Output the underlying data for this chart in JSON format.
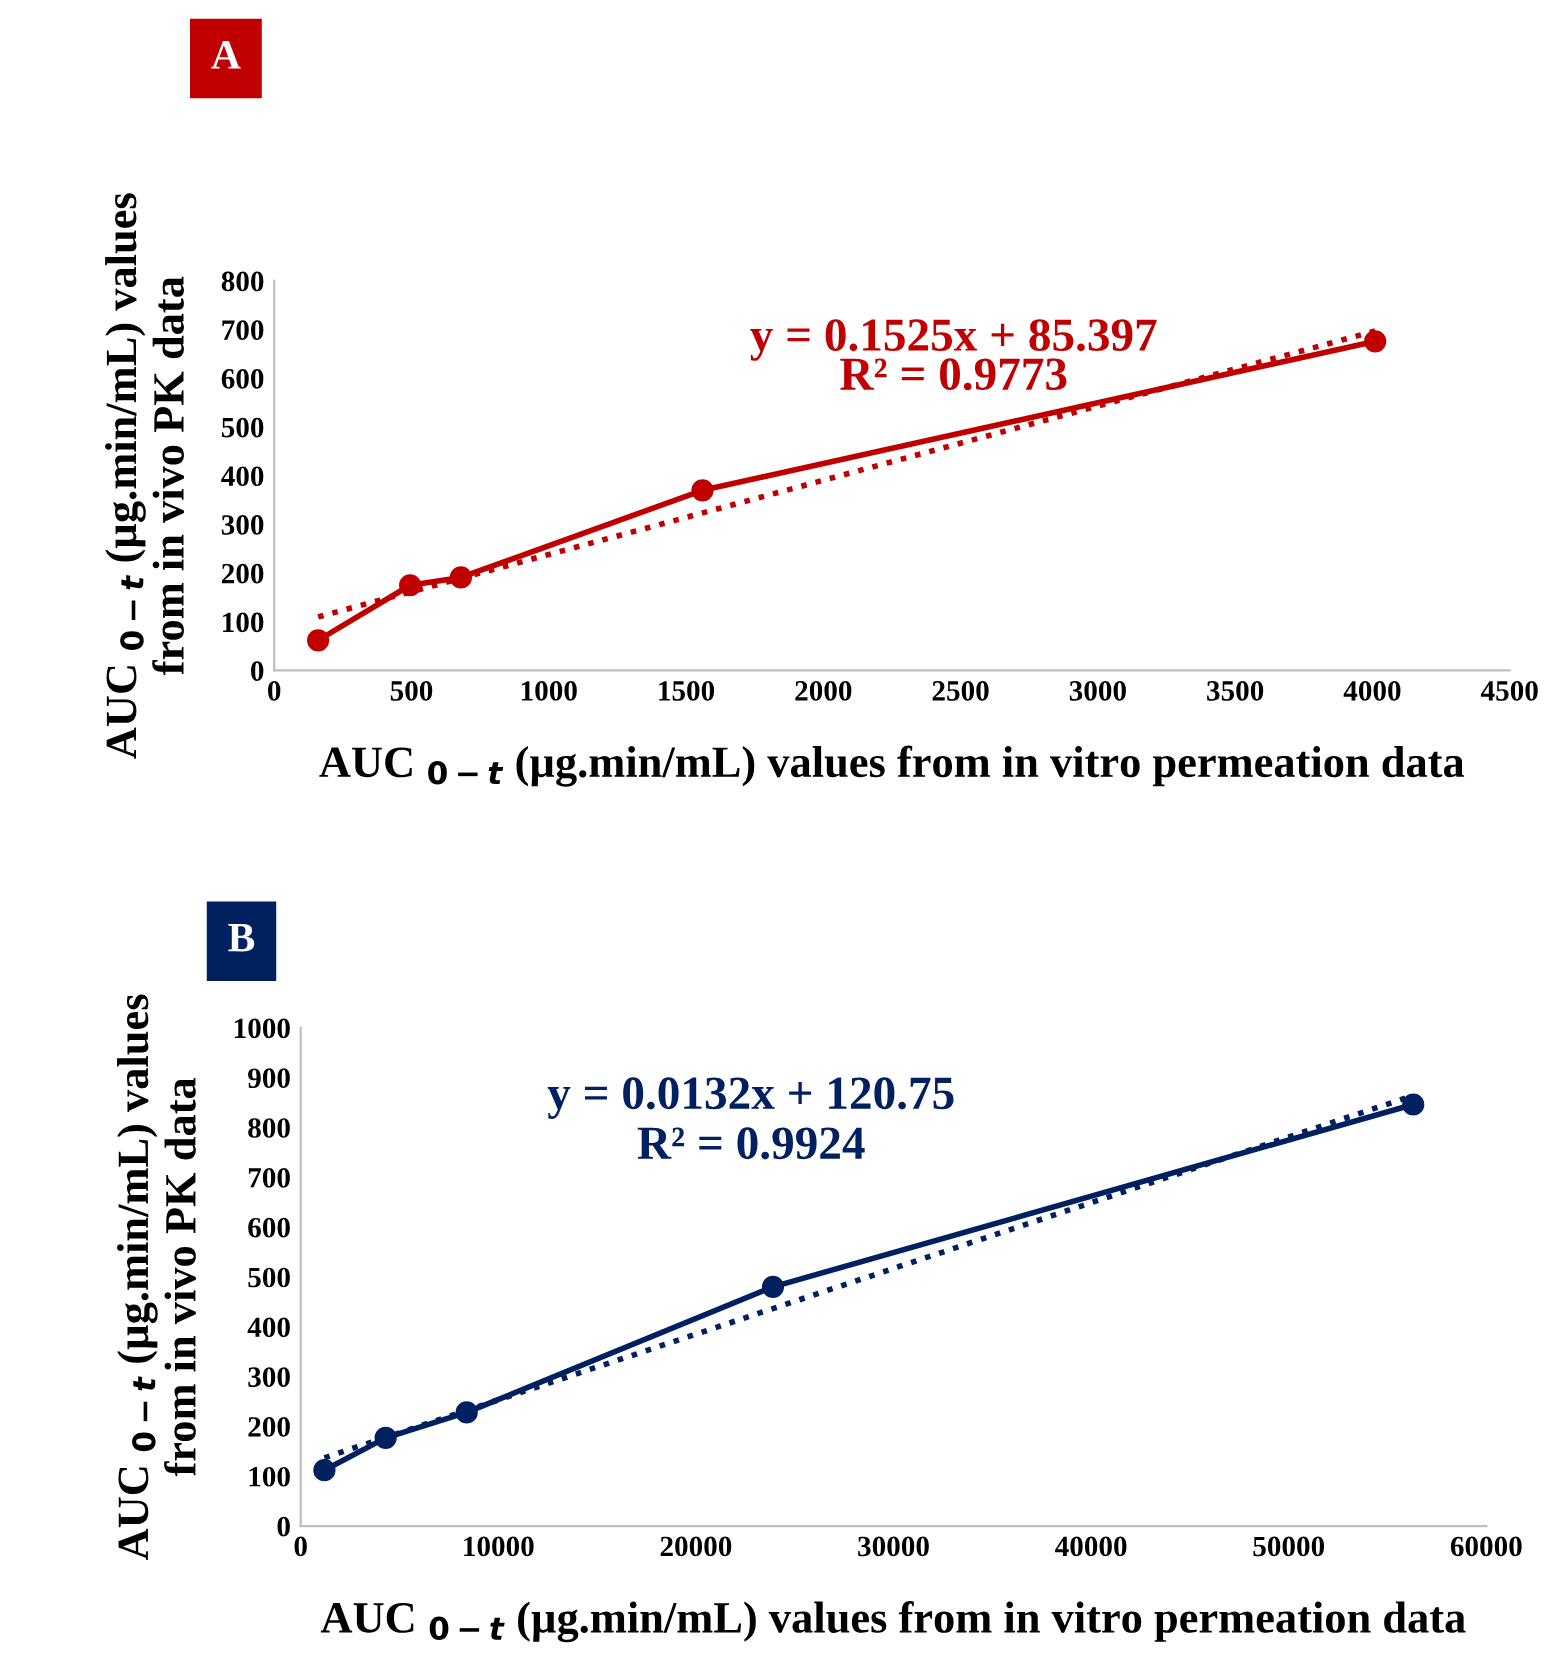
{
  "chart_data": [
    {
      "type": "line",
      "title": "A",
      "xlabel": "AUC $_{0−t}$ (µg.min/mL) values from in vitro permeation data",
      "ylabel": "AUC $_{0−t}$ (µg.min/mL) values\nfrom in vivo PK data",
      "annotations": [
        "y = 0.1525x + 85.397",
        "R² = 0.9773"
      ],
      "series": [
        {
          "color": "#c00000",
          "x": [
            160,
            495,
            680,
            1560,
            4010
          ],
          "values": [
            62,
            175,
            191,
            370,
            676
          ],
          "marker": "circle",
          "line_style": "solid"
        },
        {
          "color": "#c00000",
          "x": [
            160,
            4010
          ],
          "values": [
            110,
            697
          ],
          "marker": "none",
          "line_style": "dotted"
        }
      ],
      "xlim": [
        0,
        4500
      ],
      "ylim": [
        0,
        800
      ],
      "xticks": [
        0,
        500,
        1000,
        1500,
        2000,
        2500,
        3000,
        3500,
        4000,
        4500
      ],
      "yticks": [
        0,
        100,
        200,
        300,
        400,
        500,
        600,
        700,
        800
      ],
      "grid": false,
      "legend": false
    },
    {
      "type": "line",
      "title": "B",
      "xlabel": "AUC $_{0−t}$ (µg.min/mL) values from in vitro permeation data",
      "ylabel": "AUC $_{0−t}$ (µg.min/mL) values\nfrom in vivo PK data",
      "annotations": [
        "y = 0.0132x + 120.75",
        "R² = 0.9924"
      ],
      "series": [
        {
          "color": "#002060",
          "x": [
            1200,
            4300,
            8400,
            23900,
            56300
          ],
          "values": [
            112,
            177,
            228,
            480,
            846
          ],
          "marker": "circle",
          "line_style": "solid"
        },
        {
          "color": "#002060",
          "x": [
            1200,
            56300
          ],
          "values": [
            137,
            864
          ],
          "marker": "none",
          "line_style": "dotted"
        }
      ],
      "xlim": [
        0,
        60000
      ],
      "ylim": [
        0,
        1000
      ],
      "xticks": [
        0,
        10000,
        20000,
        30000,
        40000,
        50000,
        60000
      ],
      "yticks": [
        0,
        100,
        200,
        300,
        400,
        500,
        600,
        700,
        800,
        900,
        1000
      ],
      "grid": false,
      "legend": false
    }
  ]
}
